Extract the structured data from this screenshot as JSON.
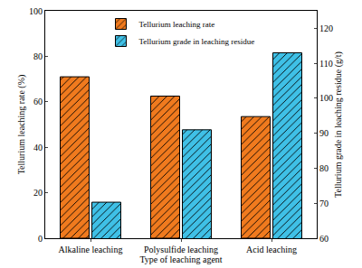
{
  "chart_data": {
    "type": "bar",
    "categories": [
      "Alkaline leaching",
      "Polysulfide leaching",
      "Acid leaching"
    ],
    "xlabel": "Type of leaching agent",
    "ylabel": "Tellurium leaching rate (%)",
    "y2label": "Tellurium grade in leaching residue (g/t)",
    "series": [
      {
        "name": "Tellurium leaching rate",
        "color": "#f07a1e",
        "values": [
          71,
          62.5,
          53.5
        ]
      },
      {
        "name": "Tellurium grade in leaching residue",
        "color": "#3fc0e6",
        "values": [
          70.3,
          91,
          113
        ],
        "axis": "y2"
      }
    ],
    "ylim": [
      0,
      100
    ],
    "yticks": [
      0,
      20,
      40,
      60,
      80,
      100
    ],
    "y2lim": [
      60,
      125
    ],
    "y2ticks": [
      60,
      70,
      80,
      90,
      100,
      110,
      120
    ],
    "legend": "upper center",
    "grid": false
  }
}
